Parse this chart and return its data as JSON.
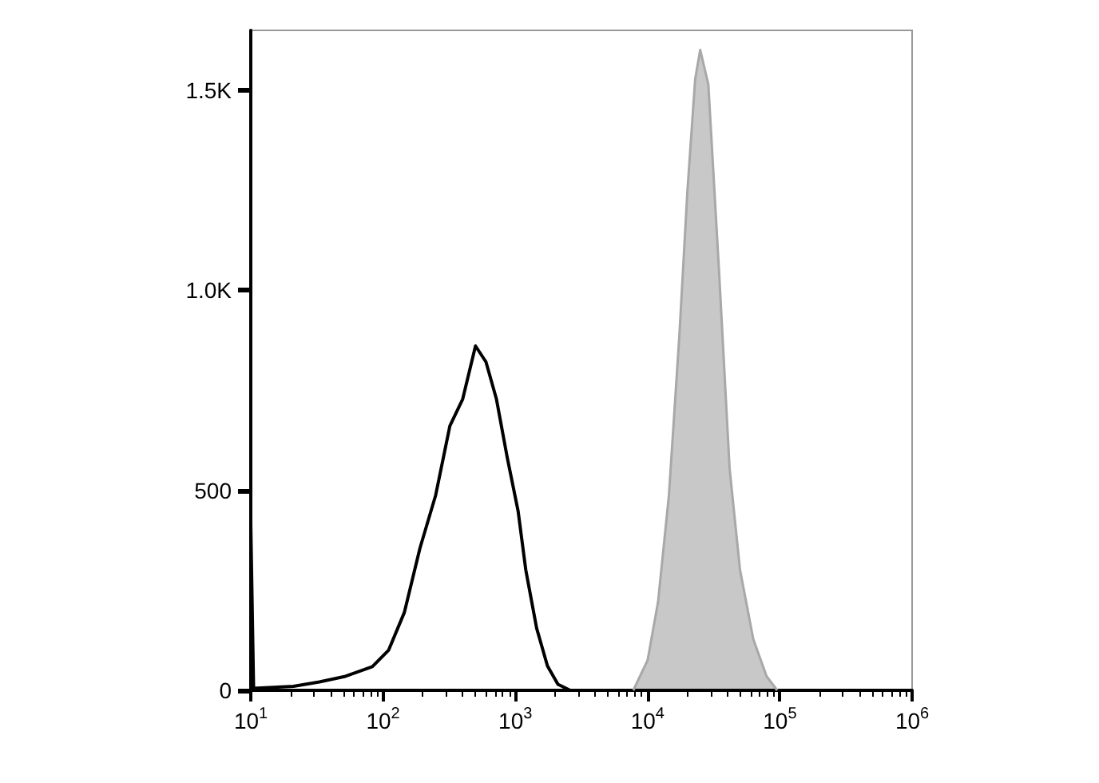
{
  "chart_data": {
    "type": "line",
    "log": "x",
    "grid": false,
    "marker": "none",
    "xlim": [
      10,
      1000000
    ],
    "xticks": [
      {
        "value": 10,
        "label": "10$^{1}$"
      },
      {
        "value": 100,
        "label": "10$^{2}$"
      },
      {
        "value": 1000,
        "label": "10$^{3}$"
      },
      {
        "value": 10000,
        "label": "10$^{4}$"
      },
      {
        "value": 100000,
        "label": "10$^{5}$"
      },
      {
        "value": 1000000,
        "label": "10$^{6}$"
      }
    ],
    "ylim": [
      0,
      1650
    ],
    "yticks": [
      0,
      500,
      {
        "value": 1000,
        "label": "1.0K"
      },
      {
        "value": 1500,
        "label": "1.5K"
      }
    ],
    "series": [
      {
        "color": "#000000",
        "x": [
          10,
          10.5,
          21,
          33,
          52,
          83,
          110,
          145,
          190,
          250,
          320,
          400,
          500,
          600,
          720,
          870,
          1050,
          1200,
          1450,
          1750,
          2100,
          2600,
          1000000
        ],
        "values": [
          415,
          5,
          10,
          21,
          35,
          59,
          100,
          195,
          355,
          488,
          661,
          728,
          861,
          821,
          728,
          581,
          448,
          301,
          155,
          61,
          15,
          0,
          0
        ]
      },
      {
        "type": "area",
        "color": "#c8c8c8",
        "x": [
          7800,
          10000,
          12000,
          14500,
          17400,
          20000,
          22900,
          25000,
          28800,
          34700,
          41700,
          50000,
          63000,
          79400,
          95500
        ],
        "values": [
          0,
          75,
          221,
          488,
          888,
          1248,
          1528,
          1601,
          1515,
          1048,
          555,
          301,
          128,
          35,
          0
        ]
      }
    ]
  }
}
